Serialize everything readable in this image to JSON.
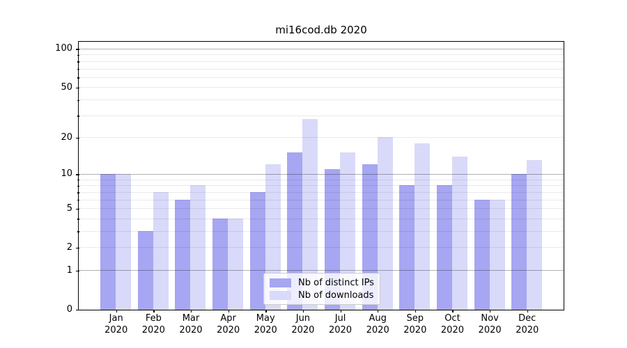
{
  "title": "mi16cod.db 2020",
  "chart_data": {
    "type": "bar",
    "title": "mi16cod.db 2020",
    "categories": [
      "Jan",
      "Feb",
      "Mar",
      "Apr",
      "May",
      "Jun",
      "Jul",
      "Aug",
      "Sep",
      "Oct",
      "Nov",
      "Dec"
    ],
    "year_label": "2020",
    "series": [
      {
        "name": "Nb of distinct IPs",
        "color": "#a6a6f2",
        "values": [
          10,
          3,
          6,
          4,
          7,
          15,
          11,
          12,
          8,
          8,
          6,
          10
        ]
      },
      {
        "name": "Nb of downloads",
        "color": "#d9d9fa",
        "values": [
          10,
          7,
          8,
          4,
          12,
          28,
          15,
          20,
          18,
          14,
          6,
          13
        ]
      }
    ],
    "xlabel": "",
    "ylabel": "",
    "y_axis": {
      "scale": "log1p",
      "range": [
        0,
        100
      ],
      "labeled_ticks": [
        0,
        1,
        2,
        5,
        10,
        20,
        50,
        100
      ],
      "major_gridlines": [
        1,
        10,
        100
      ],
      "minor_gridlines": [
        2,
        3,
        4,
        5,
        6,
        7,
        8,
        9,
        20,
        30,
        40,
        50,
        60,
        70,
        80,
        90
      ]
    },
    "legend": {
      "position": "lower center"
    },
    "grid": true
  },
  "colors": {
    "background": "#ffffff",
    "axis": "#000000",
    "major_grid": "rgba(0,0,0,0.30)",
    "minor_grid": "rgba(0,0,0,0.085)",
    "bar_dark": "#a6a6f2",
    "bar_light": "#d9d9fa"
  }
}
